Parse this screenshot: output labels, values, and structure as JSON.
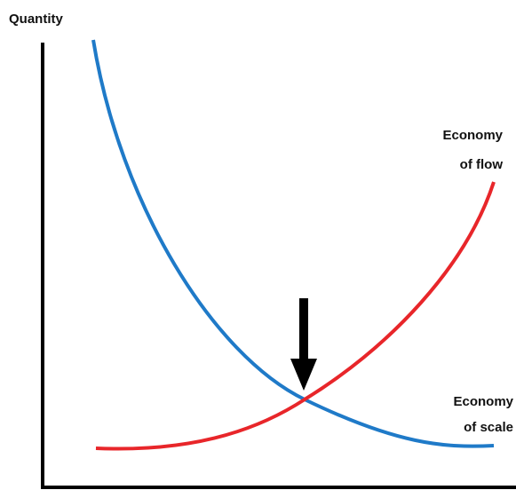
{
  "axis": {
    "y_label": "Quantity"
  },
  "curves": [
    {
      "label_lines": [
        "Economy",
        "of flow"
      ]
    },
    {
      "label_lines": [
        "Economy",
        "of scale"
      ]
    }
  ]
}
